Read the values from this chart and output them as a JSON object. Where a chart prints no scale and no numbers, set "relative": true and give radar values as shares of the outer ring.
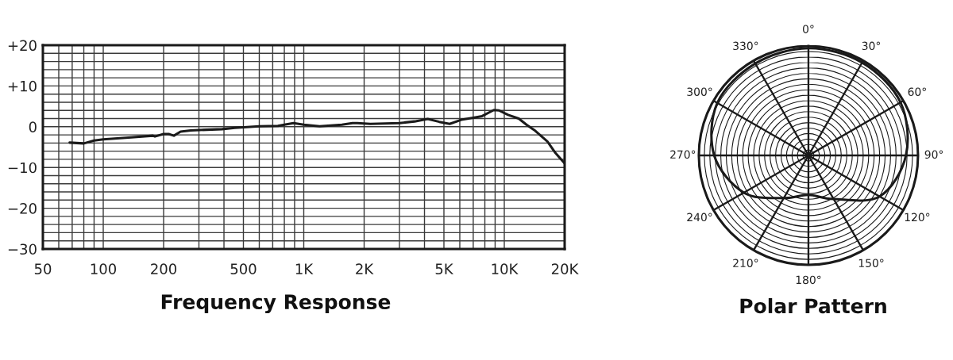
{
  "chart_data": [
    {
      "type": "line",
      "title": "Frequency Response",
      "log": "x",
      "grid": true,
      "xlim": [
        50,
        20000
      ],
      "xticks": [
        50,
        {
          "value": 60,
          "label": null
        },
        {
          "value": 70,
          "label": null
        },
        {
          "value": 80,
          "label": null
        },
        {
          "value": 90,
          "label": null
        },
        100,
        200,
        {
          "value": 300,
          "label": null
        },
        {
          "value": 400,
          "label": null
        },
        500,
        {
          "value": 600,
          "label": null
        },
        {
          "value": 700,
          "label": null
        },
        {
          "value": 800,
          "label": null
        },
        {
          "value": 900,
          "label": null
        },
        {
          "value": 1000,
          "label": "1K"
        },
        {
          "value": 2000,
          "label": "2K"
        },
        {
          "value": 3000,
          "label": null
        },
        {
          "value": 4000,
          "label": null
        },
        {
          "value": 5000,
          "label": "5K"
        },
        {
          "value": 6000,
          "label": null
        },
        {
          "value": 7000,
          "label": null
        },
        {
          "value": 8000,
          "label": null
        },
        {
          "value": 9000,
          "label": null
        },
        {
          "value": 10000,
          "label": "10K"
        },
        {
          "value": 20000,
          "label": "20K"
        }
      ],
      "ylim": [
        -30,
        20
      ],
      "yticks": [
        {
          "value": 20,
          "label": "+20"
        },
        {
          "value": 18,
          "label": null
        },
        {
          "value": 16,
          "label": null
        },
        {
          "value": 14,
          "label": null
        },
        {
          "value": 12,
          "label": null
        },
        {
          "value": 10,
          "label": "+10"
        },
        {
          "value": 8,
          "label": null
        },
        {
          "value": 6,
          "label": null
        },
        {
          "value": 4,
          "label": null
        },
        {
          "value": 2,
          "label": null
        },
        0,
        {
          "value": -2,
          "label": null
        },
        {
          "value": -4,
          "label": null
        },
        {
          "value": -6,
          "label": null
        },
        {
          "value": -8,
          "label": null
        },
        {
          "value": -10,
          "label": "−10"
        },
        {
          "value": -12,
          "label": null
        },
        {
          "value": -14,
          "label": null
        },
        {
          "value": -16,
          "label": null
        },
        {
          "value": -18,
          "label": null
        },
        {
          "value": -20,
          "label": "−20"
        },
        {
          "value": -22,
          "label": null
        },
        {
          "value": -24,
          "label": null
        },
        {
          "value": -26,
          "label": null
        },
        {
          "value": -28,
          "label": null
        },
        {
          "value": -30,
          "label": "−30"
        }
      ],
      "series": [
        {
          "color": "#1a1a1a",
          "x": [
            68,
            80,
            90,
            100,
            138,
            177,
            181,
            200,
            212,
            225,
            243,
            273,
            391,
            453,
            600,
            743,
            800,
            889,
            1000,
            1200,
            1550,
            1750,
            1850,
            2150,
            3000,
            3570,
            4150,
            4740,
            5340,
            6100,
            7000,
            7750,
            8870,
            9400,
            10450,
            11800,
            12900,
            14100,
            16400,
            17900,
            20000
          ],
          "values": [
            -3.9,
            -4.1,
            -3.4,
            -3.1,
            -2.6,
            -2.2,
            -2.4,
            -1.8,
            -1.8,
            -2.2,
            -1.2,
            -0.9,
            -0.6,
            -0.3,
            0.1,
            0.2,
            0.5,
            0.9,
            0.5,
            0.1,
            0.5,
            0.9,
            0.9,
            0.7,
            0.9,
            1.3,
            1.9,
            1.2,
            0.7,
            1.7,
            2.2,
            2.6,
            4.1,
            4.0,
            2.9,
            2.0,
            0.5,
            -0.8,
            -3.6,
            -6.3,
            -9.0
          ]
        }
      ]
    },
    {
      "type": "radar",
      "title": "Polar Pattern",
      "relative": true,
      "grid": true,
      "categories": [
        "0°",
        "30°",
        "60°",
        "90°",
        "120°",
        "150°",
        "180°",
        "210°",
        "240°",
        "270°",
        "300°",
        "330°"
      ],
      "series": [
        {
          "color": "#1a1a1a",
          "values": [
            0.98,
            0.98,
            0.97,
            0.89,
            0.75,
            0.46,
            0.36,
            0.45,
            0.68,
            0.86,
            0.96,
            0.97
          ]
        }
      ]
    }
  ]
}
